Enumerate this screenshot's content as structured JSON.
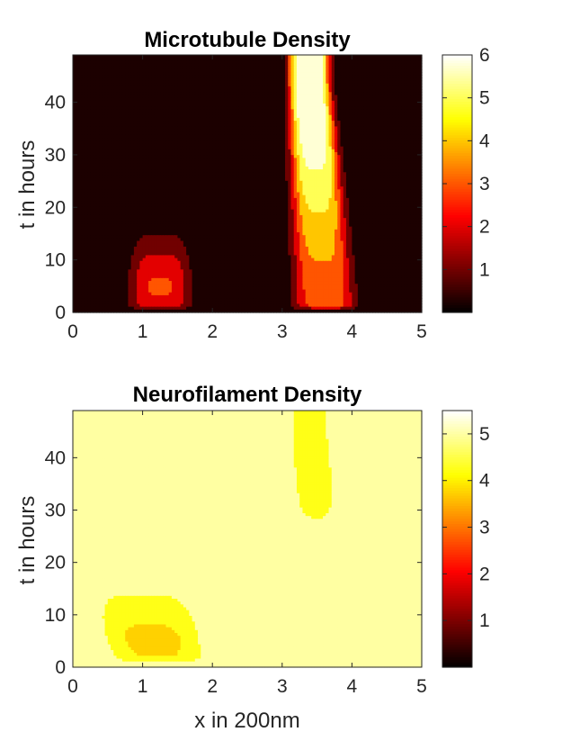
{
  "chart_data": [
    {
      "type": "heatmap",
      "subtype": "filled-contour",
      "colormap": "hot",
      "title": "Microtubule Density",
      "xlabel": "",
      "ylabel": "t in hours",
      "xlim": [
        0,
        5
      ],
      "ylim": [
        0,
        49
      ],
      "xticks": [
        "0",
        "1",
        "2",
        "3",
        "4",
        "5"
      ],
      "yticks": [
        "0",
        "10",
        "20",
        "30",
        "40"
      ],
      "colorbar": {
        "range": [
          0,
          6
        ],
        "ticks": [
          "1",
          "2",
          "3",
          "4",
          "5",
          "6"
        ]
      },
      "levels": [
        0.5,
        1.5,
        2.5,
        3.5,
        4.5,
        5.5
      ],
      "background_level": 0,
      "regions": [
        {
          "name": "left",
          "t_front": 19,
          "x_center_base": 1.25,
          "x_center_top": 1.25,
          "base_width": 0.42,
          "top_width": 0.3,
          "peak_t": 5,
          "peak": 2.6,
          "t_scale": 8,
          "rise": 0.4
        },
        {
          "name": "right",
          "t_front": 100,
          "x_center_base": 3.62,
          "x_center_top": 3.38,
          "base_width": 0.42,
          "top_width": 0.28,
          "peak_t": 100,
          "peak": 6.8,
          "t_scale": 30,
          "rise": 0.4
        }
      ]
    },
    {
      "type": "heatmap",
      "subtype": "filled-contour",
      "colormap": "hot",
      "title": "Neurofilament Density",
      "xlabel": "x in 200nm",
      "ylabel": "t in hours",
      "xlim": [
        0,
        5
      ],
      "ylim": [
        0,
        49
      ],
      "xticks": [
        "0",
        "1",
        "2",
        "3",
        "4",
        "5"
      ],
      "yticks": [
        "0",
        "10",
        "20",
        "30",
        "40"
      ],
      "colorbar": {
        "range": [
          0,
          5.5
        ],
        "ticks": [
          "1",
          "2",
          "3",
          "4",
          "5"
        ]
      },
      "levels": [
        0.5,
        1.0,
        1.5,
        2.0,
        2.5,
        3.0,
        3.5,
        4.0,
        4.5
      ],
      "background_level": 5,
      "regions": [
        {
          "name": "left",
          "t_front": 26,
          "x_center_base": 1.25,
          "x_center_top": 0.4,
          "base_width": 0.65,
          "top_width": 1.0,
          "peak_t": 5,
          "peak": 3.9,
          "t_scale": 10,
          "rise": 0.5
        },
        {
          "name": "right",
          "t_front": 100,
          "x_center_base": 3.65,
          "x_center_top": 3.4,
          "base_width": 0.7,
          "top_width": 0.35,
          "peak_t": 100,
          "peak": 5.6,
          "t_scale": 30,
          "rise": 0.5
        }
      ]
    }
  ]
}
